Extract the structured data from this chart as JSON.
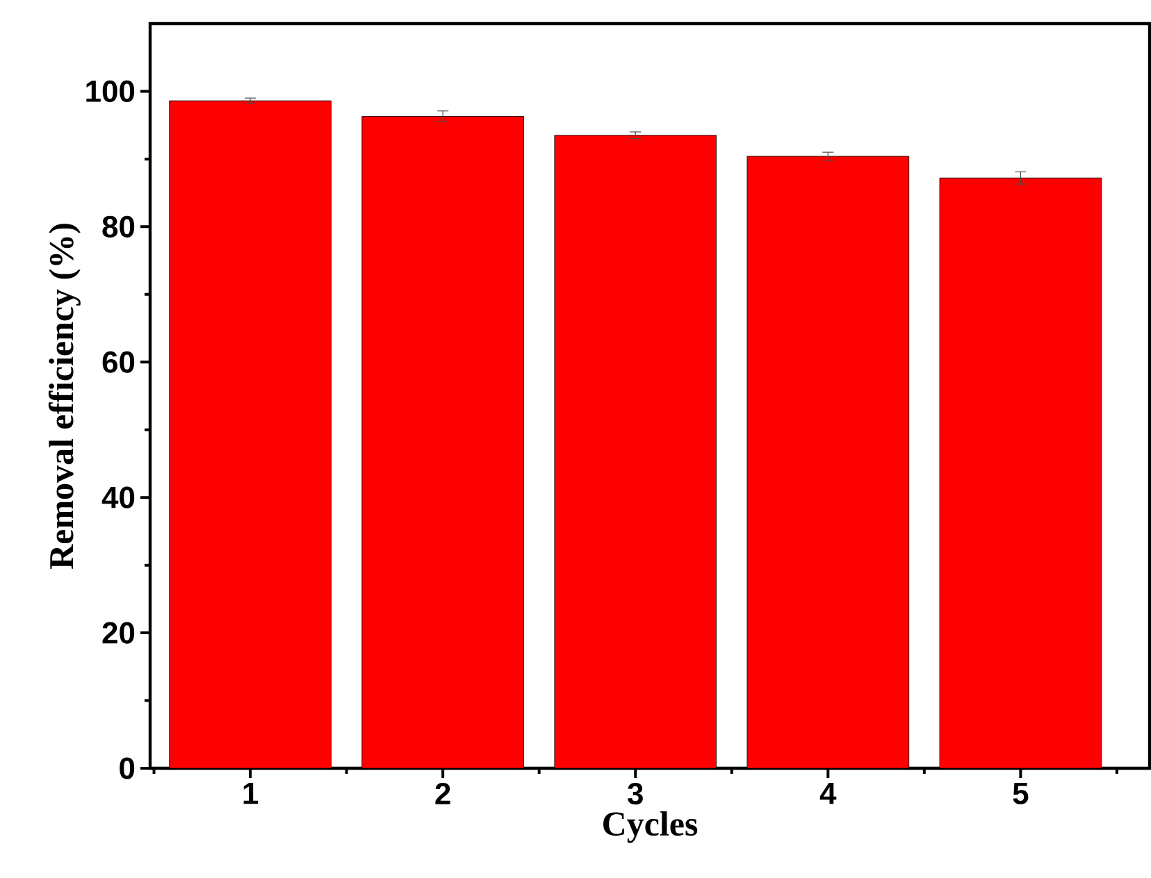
{
  "chart_data": {
    "type": "bar",
    "xlabel": "Cycles",
    "ylabel": "Removal efficiency (%)",
    "categories": [
      "1",
      "2",
      "3",
      "4",
      "5"
    ],
    "values": [
      98.6,
      96.3,
      93.5,
      90.4,
      87.2
    ],
    "errors": [
      0.4,
      0.8,
      0.5,
      0.6,
      0.9
    ],
    "color": "#ff0000",
    "ylim": [
      0,
      110
    ],
    "yticks": [
      0,
      20,
      40,
      60,
      80,
      100
    ]
  }
}
